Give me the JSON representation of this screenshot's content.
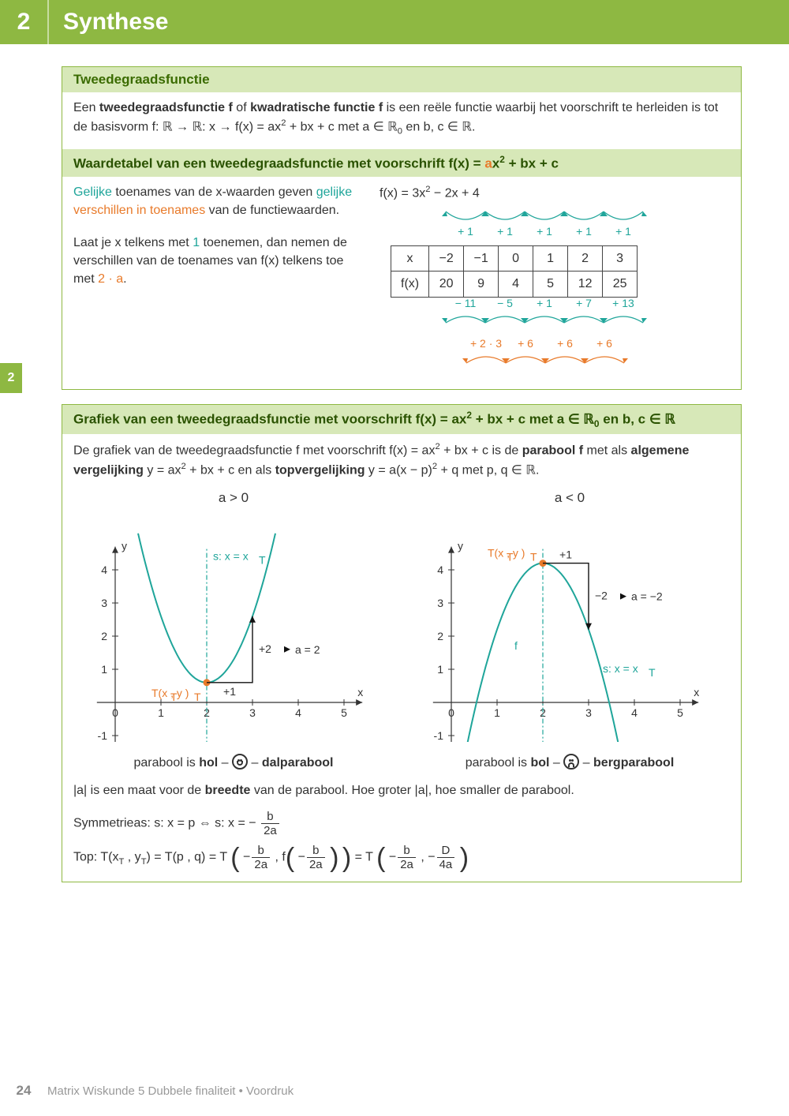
{
  "header": {
    "num": "2",
    "title": "Synthese"
  },
  "sideTab": "2",
  "box1": {
    "title": "Tweedegraadsfunctie",
    "intro": "Een tweedegraadsfunctie f of kwadratische functie f is een reële functie waarbij het voorschrift te herleiden is tot de basisvorm f: ℝ → ℝ: x → f(x) = ax² + bx + c met a ∈ ℝ₀ en b, c ∈ ℝ.",
    "sub": "Waardetabel van een tweedegraadsfunctie met voorschrift f(x) = ax² + bx + c",
    "leftA": "Gelijke toenames van de x-waarden geven gelijke verschillen in toenames van de functiewaarden.",
    "leftB": "Laat je x telkens met 1 toenemen, dan nemen de verschillen van de toenames van f(x) telkens toe met 2 · a.",
    "formula": "f(x) = 3x² − 2x + 4",
    "topDeltas": [
      "+ 1",
      "+ 1",
      "+ 1",
      "+ 1",
      "+ 1"
    ],
    "table": {
      "rows": [
        {
          "hdr": "x",
          "cells": [
            "−2",
            "−1",
            "0",
            "1",
            "2",
            "3"
          ]
        },
        {
          "hdr": "f(x)",
          "cells": [
            "20",
            "9",
            "4",
            "5",
            "12",
            "25"
          ]
        }
      ]
    },
    "d1": [
      "− 11",
      "− 5",
      "+ 1",
      "+ 7",
      "+ 13"
    ],
    "d2": [
      "+ 2 · 3",
      "+ 6",
      "+ 6",
      "+ 6"
    ]
  },
  "box2": {
    "head": "Grafiek van een tweedegraadsfunctie met voorschrift f(x) = ax² + bx + c met a ∈ ℝ₀ en b, c ∈ ℝ",
    "para": "De grafiek van de tweedegraadsfunctie f met voorschrift f(x) = ax² + bx + c is de parabool f met als algemene vergelijking y = ax² + bx + c en als topvergelijking y = a(x − p)² + q met p, q ∈ ℝ.",
    "g1": {
      "title": "a > 0",
      "caption": [
        "parabool is ",
        "hol",
        " – ",
        " – dalparabool"
      ],
      "face": "happy",
      "sym": "s: x = x",
      "vertex": "T(x  , y  )",
      "a_eq": "a = 2",
      "d1": "+1",
      "d2": "+2",
      "parabola": {
        "a": 2,
        "p": 2,
        "q": 0.6,
        "color": "#1fa59a"
      }
    },
    "g2": {
      "title": "a < 0",
      "caption": [
        "parabool is ",
        "bol",
        " – ",
        " – bergparabool"
      ],
      "face": "sad",
      "sym": "s: x = x",
      "vertex": "T(x  , y  )",
      "a_eq": "a = −2",
      "d1": "+1",
      "d2": "−2",
      "f": "f",
      "parabola": {
        "a": -2,
        "p": 2,
        "q": 4.2,
        "color": "#1fa59a"
      }
    },
    "breedte": "|a| is een maat voor de breedte van de parabool. Hoe groter |a|, hoe smaller de parabool.",
    "symAs": "Symmetrieas: s: x = p ⇔ s: x = −",
    "topLabel": "Top: T(x  , y  ) = T(p , q) = T",
    "b2a_b": "b",
    "b2a_2a": "2a",
    "D4a_D": "D",
    "D4a_4a": "4a",
    "axes": {
      "xlim": [
        -0.6,
        5.4
      ],
      "ylim": [
        -1.4,
        4.8
      ],
      "xticks": [
        0,
        1,
        2,
        3,
        4,
        5
      ],
      "yticks": [
        -1,
        0,
        1,
        2,
        3,
        4
      ],
      "axis_color": "#333",
      "curve_color": "#1fa59a",
      "vertex_color": "#e87a2a"
    }
  },
  "footer": {
    "page": "24",
    "text": "Matrix Wiskunde 5 Dubbele finaliteit • Voordruk"
  }
}
